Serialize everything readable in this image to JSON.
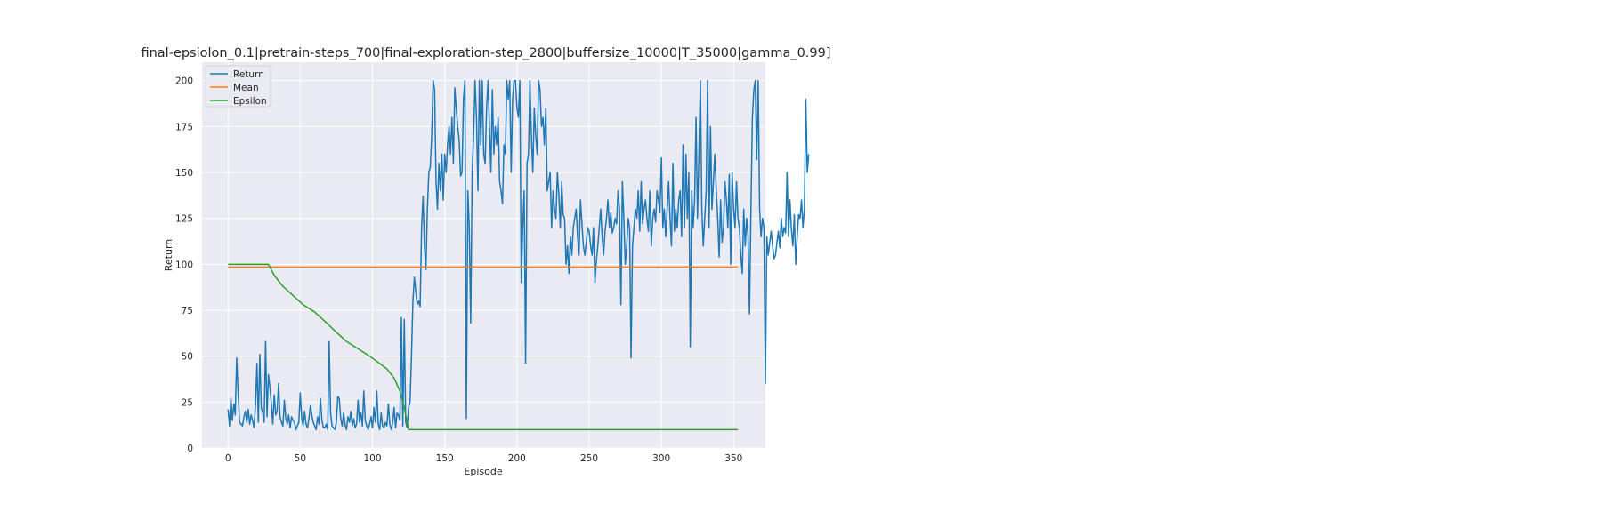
{
  "chart_data": {
    "type": "line",
    "title": "final-epsiolon_0.1|pretrain-steps_700|final-exploration-step_2800|buffersize_10000|T_35000|gamma_0.99]",
    "xlabel": "Episode",
    "ylabel": "Return",
    "xlim": [
      -18,
      372
    ],
    "ylim": [
      0,
      210
    ],
    "xticks": [
      0,
      50,
      100,
      150,
      200,
      250,
      300,
      350
    ],
    "yticks": [
      0,
      25,
      50,
      75,
      100,
      125,
      150,
      175,
      200
    ],
    "grid": true,
    "legend_position": "upper left",
    "series": [
      {
        "name": "Return",
        "color": "#1f77b4",
        "x_start": 0,
        "values": [
          21,
          12,
          27,
          15,
          24,
          18,
          49,
          30,
          14,
          13,
          12,
          17,
          20,
          14,
          21,
          13,
          18,
          15,
          11,
          23,
          46,
          14,
          51,
          22,
          19,
          14,
          58,
          17,
          40,
          33,
          24,
          13,
          29,
          18,
          20,
          35,
          17,
          14,
          12,
          26,
          16,
          13,
          18,
          11,
          17,
          15,
          14,
          10,
          12,
          14,
          30,
          16,
          12,
          20,
          13,
          11,
          16,
          23,
          18,
          14,
          12,
          10,
          17,
          13,
          27,
          15,
          11,
          11,
          13,
          10,
          58,
          19,
          12,
          11,
          10,
          14,
          28,
          27,
          16,
          12,
          19,
          13,
          10,
          17,
          14,
          20,
          12,
          16,
          11,
          13,
          26,
          14,
          19,
          12,
          31,
          15,
          12,
          10,
          13,
          17,
          11,
          22,
          14,
          31,
          13,
          10,
          19,
          12,
          11,
          14,
          12,
          24,
          13,
          10,
          14,
          22,
          11,
          19,
          18,
          15,
          71,
          12,
          70,
          14,
          11,
          22,
          25,
          50,
          80,
          93,
          85,
          78,
          80,
          77,
          120,
          137,
          110,
          97,
          130,
          150,
          153,
          170,
          200,
          195,
          145,
          130,
          155,
          140,
          160,
          135,
          160,
          150,
          165,
          175,
          160,
          180,
          155,
          196,
          185,
          175,
          168,
          148,
          150,
          190,
          200,
          16,
          140,
          120,
          68,
          150,
          170,
          200,
          180,
          140,
          200,
          165,
          200,
          160,
          155,
          185,
          200,
          175,
          150,
          195,
          160,
          175,
          165,
          180,
          145,
          140,
          133,
          165,
          160,
          200,
          190,
          200,
          150,
          190,
          200,
          200,
          185,
          180,
          200,
          90,
          120,
          140,
          46,
          155,
          160,
          200,
          170,
          150,
          185,
          170,
          160,
          200,
          195,
          175,
          180,
          165,
          185,
          140,
          145,
          150,
          120,
          140,
          130,
          125,
          150,
          138,
          120,
          145,
          127,
          125,
          100,
          110,
          95,
          115,
          105,
          120,
          125,
          130,
          115,
          105,
          135,
          122,
          110,
          105,
          112,
          120,
          118,
          110,
          105,
          120,
          90,
          102,
          110,
          120,
          130,
          115,
          105,
          118,
          125,
          135,
          120,
          128,
          117,
          120,
          125,
          122,
          140,
          130,
          78,
          145,
          125,
          100,
          110,
          125,
          120,
          49,
          110,
          120,
          130,
          125,
          140,
          118,
          145,
          122,
          130,
          135,
          125,
          118,
          140,
          110,
          125,
          130,
          123,
          140,
          135,
          128,
          158,
          120,
          130,
          115,
          130,
          145,
          125,
          110,
          155,
          118,
          130,
          120,
          135,
          140,
          115,
          165,
          120,
          160,
          125,
          150,
          55,
          140,
          120,
          135,
          180,
          125,
          160,
          200,
          130,
          110,
          125,
          140,
          200,
          120,
          175,
          130,
          145,
          160,
          140,
          125,
          104,
          135,
          112,
          120,
          145,
          135,
          120,
          149,
          100,
          150,
          130,
          120,
          145,
          125,
          120,
          105,
          95,
          130,
          110,
          125,
          115,
          73,
          130,
          180,
          195,
          200,
          157,
          200,
          130,
          115,
          125,
          120,
          35,
          115,
          105,
          112,
          118,
          110,
          103,
          105,
          112,
          118,
          109,
          125,
          115,
          120,
          117,
          150,
          115,
          135,
          119,
          110,
          127,
          100,
          115,
          127,
          125,
          135,
          120,
          130,
          190,
          150,
          160
        ]
      },
      {
        "name": "Mean",
        "color": "#ff7f0e",
        "x_range": [
          0,
          353
        ],
        "value": 98.5
      },
      {
        "name": "Epsilon",
        "color": "#2ca02c",
        "points": [
          [
            0,
            100
          ],
          [
            28,
            100
          ],
          [
            32,
            94
          ],
          [
            38,
            88
          ],
          [
            45,
            83
          ],
          [
            52,
            78
          ],
          [
            60,
            74
          ],
          [
            67,
            69
          ],
          [
            75,
            63
          ],
          [
            82,
            58
          ],
          [
            90,
            54
          ],
          [
            98,
            50
          ],
          [
            105,
            46
          ],
          [
            110,
            43
          ],
          [
            115,
            38
          ],
          [
            119,
            31
          ],
          [
            122,
            22
          ],
          [
            125,
            10
          ],
          [
            353,
            10
          ]
        ]
      }
    ]
  }
}
